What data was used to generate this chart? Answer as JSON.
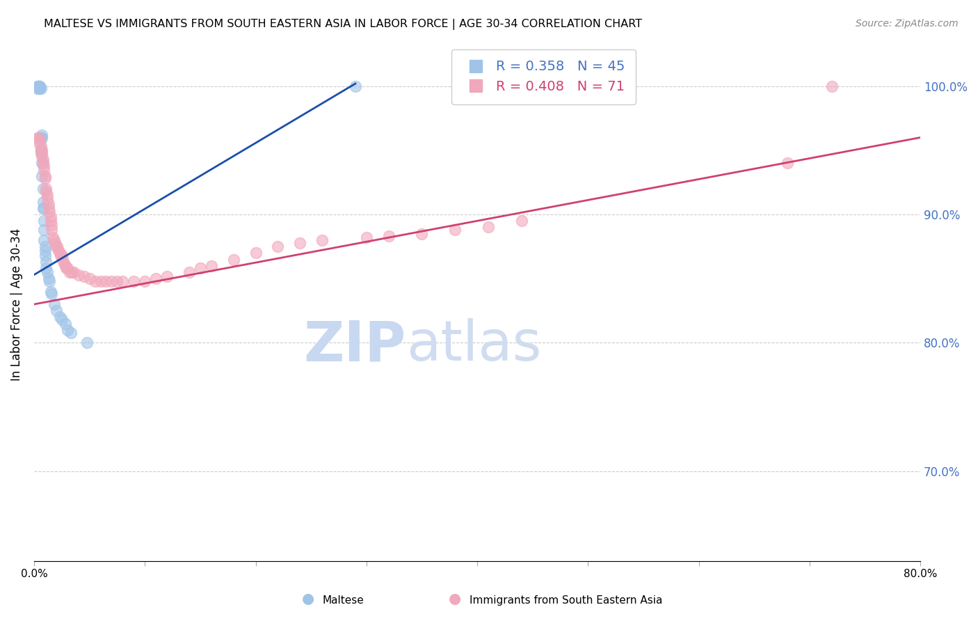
{
  "title": "MALTESE VS IMMIGRANTS FROM SOUTH EASTERN ASIA IN LABOR FORCE | AGE 30-34 CORRELATION CHART",
  "source": "Source: ZipAtlas.com",
  "ylabel": "In Labor Force | Age 30-34",
  "xlim": [
    0.0,
    0.8
  ],
  "ylim": [
    0.63,
    1.03
  ],
  "yticks": [
    0.7,
    0.8,
    0.9,
    1.0
  ],
  "ytick_labels": [
    "70.0%",
    "80.0%",
    "90.0%",
    "100.0%"
  ],
  "xticks": [
    0.0,
    0.1,
    0.2,
    0.3,
    0.4,
    0.5,
    0.6,
    0.7,
    0.8
  ],
  "xtick_labels": [
    "0.0%",
    "",
    "",
    "",
    "",
    "",
    "",
    "",
    "80.0%"
  ],
  "blue_R": 0.358,
  "blue_N": 45,
  "pink_R": 0.408,
  "pink_N": 71,
  "blue_color": "#a0c4e8",
  "pink_color": "#f0a8bc",
  "blue_line_color": "#1a4faa",
  "pink_line_color": "#d04070",
  "watermark_zip": "ZIP",
  "watermark_atlas": "atlas",
  "watermark_color_zip": "#c8d8f0",
  "watermark_color_atlas": "#c8d8f0",
  "legend_label_blue": "Maltese",
  "legend_label_pink": "Immigrants from South Eastern Asia",
  "blue_scatter_x": [
    0.003,
    0.003,
    0.004,
    0.004,
    0.004,
    0.005,
    0.005,
    0.005,
    0.005,
    0.005,
    0.006,
    0.006,
    0.006,
    0.006,
    0.007,
    0.007,
    0.007,
    0.007,
    0.007,
    0.008,
    0.008,
    0.008,
    0.009,
    0.009,
    0.009,
    0.009,
    0.01,
    0.01,
    0.01,
    0.011,
    0.011,
    0.012,
    0.013,
    0.014,
    0.015,
    0.016,
    0.018,
    0.02,
    0.023,
    0.025,
    0.028,
    0.03,
    0.033,
    0.048,
    0.29
  ],
  "blue_scatter_y": [
    0.998,
    1.0,
    0.998,
    1.0,
    1.0,
    0.998,
    1.0,
    1.0,
    0.998,
    0.96,
    0.998,
    0.96,
    0.95,
    0.948,
    0.96,
    0.962,
    0.95,
    0.94,
    0.93,
    0.92,
    0.91,
    0.905,
    0.905,
    0.895,
    0.888,
    0.88,
    0.875,
    0.872,
    0.868,
    0.863,
    0.858,
    0.855,
    0.85,
    0.848,
    0.84,
    0.838,
    0.83,
    0.825,
    0.82,
    0.818,
    0.815,
    0.81,
    0.808,
    0.8,
    1.0
  ],
  "pink_scatter_x": [
    0.003,
    0.004,
    0.005,
    0.005,
    0.006,
    0.006,
    0.007,
    0.007,
    0.008,
    0.008,
    0.009,
    0.009,
    0.01,
    0.01,
    0.011,
    0.011,
    0.012,
    0.012,
    0.013,
    0.013,
    0.014,
    0.015,
    0.015,
    0.016,
    0.016,
    0.017,
    0.018,
    0.019,
    0.02,
    0.021,
    0.022,
    0.023,
    0.024,
    0.025,
    0.026,
    0.027,
    0.028,
    0.029,
    0.03,
    0.032,
    0.034,
    0.036,
    0.04,
    0.045,
    0.05,
    0.055,
    0.06,
    0.065,
    0.07,
    0.075,
    0.08,
    0.09,
    0.1,
    0.11,
    0.12,
    0.14,
    0.15,
    0.16,
    0.18,
    0.2,
    0.22,
    0.24,
    0.26,
    0.3,
    0.32,
    0.35,
    0.38,
    0.41,
    0.44,
    0.68,
    0.72
  ],
  "pink_scatter_y": [
    0.96,
    0.96,
    0.958,
    0.955,
    0.953,
    0.95,
    0.948,
    0.945,
    0.943,
    0.94,
    0.938,
    0.935,
    0.93,
    0.928,
    0.92,
    0.918,
    0.915,
    0.912,
    0.908,
    0.905,
    0.902,
    0.898,
    0.895,
    0.892,
    0.888,
    0.882,
    0.88,
    0.878,
    0.875,
    0.875,
    0.872,
    0.87,
    0.868,
    0.868,
    0.865,
    0.862,
    0.86,
    0.858,
    0.858,
    0.855,
    0.855,
    0.855,
    0.853,
    0.852,
    0.85,
    0.848,
    0.848,
    0.848,
    0.848,
    0.848,
    0.848,
    0.848,
    0.848,
    0.85,
    0.852,
    0.855,
    0.858,
    0.86,
    0.865,
    0.87,
    0.875,
    0.878,
    0.88,
    0.882,
    0.883,
    0.885,
    0.888,
    0.89,
    0.895,
    0.94,
    1.0
  ],
  "blue_line_x": [
    0.0,
    0.29
  ],
  "blue_line_y": [
    0.853,
    1.002
  ],
  "pink_line_x": [
    0.0,
    0.8
  ],
  "pink_line_y": [
    0.83,
    0.96
  ]
}
